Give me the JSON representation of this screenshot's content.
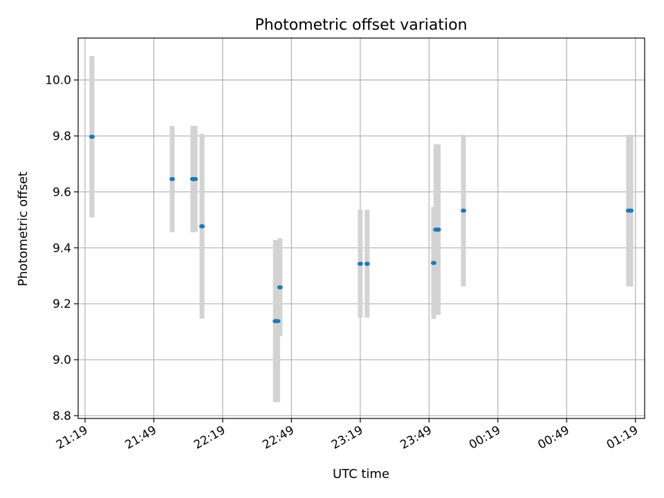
{
  "chart_data": {
    "type": "scatter",
    "title": "Photometric offset variation",
    "xlabel": "UTC time",
    "ylabel": "Photometric offset",
    "x_ticks": [
      "21:19",
      "21:49",
      "22:19",
      "22:49",
      "23:19",
      "23:49",
      "00:19",
      "00:49",
      "01:19"
    ],
    "y_ticks": [
      "8.8",
      "9.0",
      "9.2",
      "9.4",
      "9.6",
      "9.8",
      "10.0"
    ],
    "xlim": [
      "21:16",
      "01:23"
    ],
    "ylim": [
      8.79,
      10.15
    ],
    "grid": true,
    "colors": {
      "points": "#1f77b4",
      "error_bars": "#d3d3d3",
      "grid": "#b0b0b0"
    },
    "series": [
      {
        "x": [
          "21:22",
          "21:22",
          "21:57",
          "22:06",
          "22:07",
          "22:10",
          "22:10",
          "22:42",
          "22:43",
          "22:44",
          "23:19",
          "23:22",
          "23:51",
          "23:52",
          "23:53",
          "24:04",
          "25:16",
          "25:17"
        ],
        "y": [
          9.797,
          9.797,
          9.646,
          9.646,
          9.646,
          9.477,
          9.477,
          9.138,
          9.138,
          9.259,
          9.343,
          9.343,
          9.346,
          9.465,
          9.465,
          9.533,
          9.533,
          9.533
        ],
        "err": [
          0.288,
          0.288,
          0.19,
          0.19,
          0.19,
          0.33,
          0.33,
          0.29,
          0.29,
          0.175,
          0.193,
          0.193,
          0.2,
          0.305,
          0.305,
          0.271,
          0.271,
          0.271
        ]
      }
    ]
  }
}
